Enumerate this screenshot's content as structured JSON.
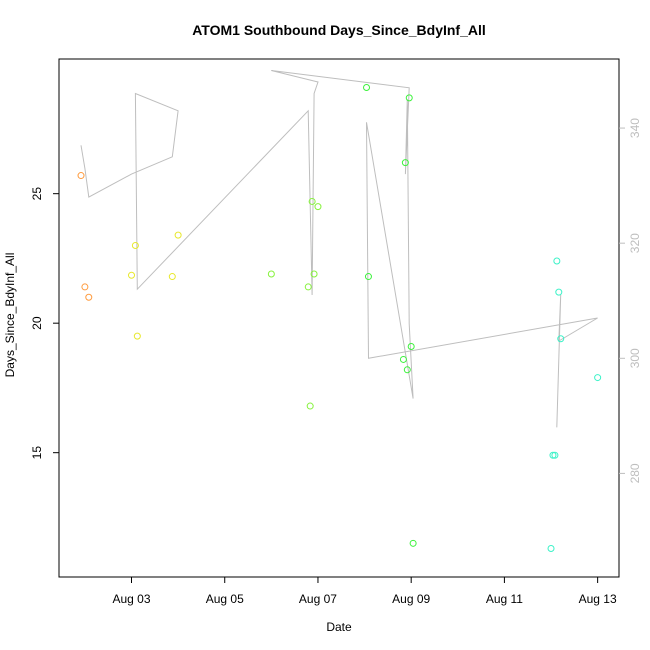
{
  "chart_data": {
    "type": "scatter",
    "title": "ATOM1 Southbound Days_Since_BdyInf_All",
    "xlabel": "Date",
    "ylabel": "Days_Since_BdyInf_All",
    "x_axis": {
      "type": "date",
      "range": [
        "2024-08-01T10:40",
        "2024-08-13T11:00"
      ],
      "ticks": [
        "Aug 03",
        "Aug 05",
        "Aug 07",
        "Aug 09",
        "Aug 11",
        "Aug 13"
      ],
      "tick_dates": [
        "2024-08-03",
        "2024-08-05",
        "2024-08-07",
        "2024-08-09",
        "2024-08-11",
        "2024-08-13"
      ]
    },
    "y_axis": {
      "range": [
        10.2,
        30.2
      ],
      "ticks": [
        15,
        20,
        25
      ]
    },
    "y2_axis": {
      "range": [
        262,
        352
      ],
      "ticks": [
        280,
        300,
        320,
        340
      ],
      "color": "#bebebe"
    },
    "points": [
      {
        "x": "2024-08-01T22:00",
        "y": 25.7,
        "color": "#ff9a3c"
      },
      {
        "x": "2024-08-02T00:00",
        "y": 21.4,
        "color": "#ff9a3c"
      },
      {
        "x": "2024-08-02T02:00",
        "y": 21.0,
        "color": "#ff9a3c"
      },
      {
        "x": "2024-08-03T00:00",
        "y": 21.85,
        "color": "#e8e82c"
      },
      {
        "x": "2024-08-03T02:00",
        "y": 23.0,
        "color": "#e8e82c"
      },
      {
        "x": "2024-08-03T03:00",
        "y": 19.5,
        "color": "#e8e82c"
      },
      {
        "x": "2024-08-03T21:00",
        "y": 21.8,
        "color": "#e8e82c"
      },
      {
        "x": "2024-08-04T00:00",
        "y": 23.4,
        "color": "#e8e82c"
      },
      {
        "x": "2024-08-06T00:00",
        "y": 21.9,
        "color": "#86f23c"
      },
      {
        "x": "2024-08-06T19:00",
        "y": 21.4,
        "color": "#86f23c"
      },
      {
        "x": "2024-08-06T20:00",
        "y": 16.8,
        "color": "#86f23c"
      },
      {
        "x": "2024-08-06T21:00",
        "y": 24.7,
        "color": "#86f23c"
      },
      {
        "x": "2024-08-06T22:00",
        "y": 21.9,
        "color": "#86f23c"
      },
      {
        "x": "2024-08-07T00:00",
        "y": 24.5,
        "color": "#86f23c"
      },
      {
        "x": "2024-08-08T01:00",
        "y": 29.1,
        "color": "#3cf23c"
      },
      {
        "x": "2024-08-08T02:00",
        "y": 21.8,
        "color": "#3cf23c"
      },
      {
        "x": "2024-08-08T20:00",
        "y": 18.6,
        "color": "#3cf23c"
      },
      {
        "x": "2024-08-08T21:00",
        "y": 26.2,
        "color": "#3cf23c"
      },
      {
        "x": "2024-08-08T22:00",
        "y": 18.2,
        "color": "#3cf23c"
      },
      {
        "x": "2024-08-08T23:00",
        "y": 28.7,
        "color": "#3cf23c"
      },
      {
        "x": "2024-08-09T00:00",
        "y": 19.1,
        "color": "#3cf23c"
      },
      {
        "x": "2024-08-09T01:00",
        "y": 11.5,
        "color": "#3cf23c"
      },
      {
        "x": "2024-08-12T00:00",
        "y": 11.3,
        "color": "#3cf2c8"
      },
      {
        "x": "2024-08-12T01:00",
        "y": 14.9,
        "color": "#3cf2c8"
      },
      {
        "x": "2024-08-12T02:00",
        "y": 14.9,
        "color": "#3cf2c8"
      },
      {
        "x": "2024-08-12T03:00",
        "y": 22.4,
        "color": "#3cf2c8"
      },
      {
        "x": "2024-08-12T04:00",
        "y": 21.2,
        "color": "#3cf2c8"
      },
      {
        "x": "2024-08-12T05:00",
        "y": 19.4,
        "color": "#3cf2c8"
      },
      {
        "x": "2024-08-13T00:00",
        "y": 17.9,
        "color": "#3cf2c8"
      }
    ],
    "line": {
      "axis": "y2",
      "color": "#bebebe",
      "points": [
        {
          "x": "2024-08-01T22:00",
          "y": 337
        },
        {
          "x": "2024-08-02T00:00",
          "y": 333
        },
        {
          "x": "2024-08-02T02:00",
          "y": 328
        },
        {
          "x": "2024-08-03T00:00",
          "y": 332
        },
        {
          "x": "2024-08-03T21:00",
          "y": 335
        },
        {
          "x": "2024-08-04T00:00",
          "y": 343
        },
        {
          "x": "2024-08-03T02:00",
          "y": 346
        },
        {
          "x": "2024-08-03T03:00",
          "y": 312
        },
        {
          "x": "2024-08-06T19:00",
          "y": 343
        },
        {
          "x": "2024-08-06T21:00",
          "y": 311
        },
        {
          "x": "2024-08-06T22:00",
          "y": 346
        },
        {
          "x": "2024-08-07T00:00",
          "y": 348
        },
        {
          "x": "2024-08-06T00:00",
          "y": 350
        },
        {
          "x": "2024-08-08T23:00",
          "y": 347
        },
        {
          "x": "2024-08-08T21:00",
          "y": 332
        },
        {
          "x": "2024-08-08T22:00",
          "y": 345
        },
        {
          "x": "2024-08-08T23:00",
          "y": 306
        },
        {
          "x": "2024-08-09T01:00",
          "y": 293
        },
        {
          "x": "2024-08-08T01:00",
          "y": 341
        },
        {
          "x": "2024-08-08T02:00",
          "y": 300
        },
        {
          "x": "2024-08-13T00:00",
          "y": 307
        },
        {
          "x": "2024-08-12T04:00",
          "y": 303
        },
        {
          "x": "2024-08-12T05:00",
          "y": 311
        },
        {
          "x": "2024-08-12T03:00",
          "y": 288
        }
      ]
    }
  }
}
